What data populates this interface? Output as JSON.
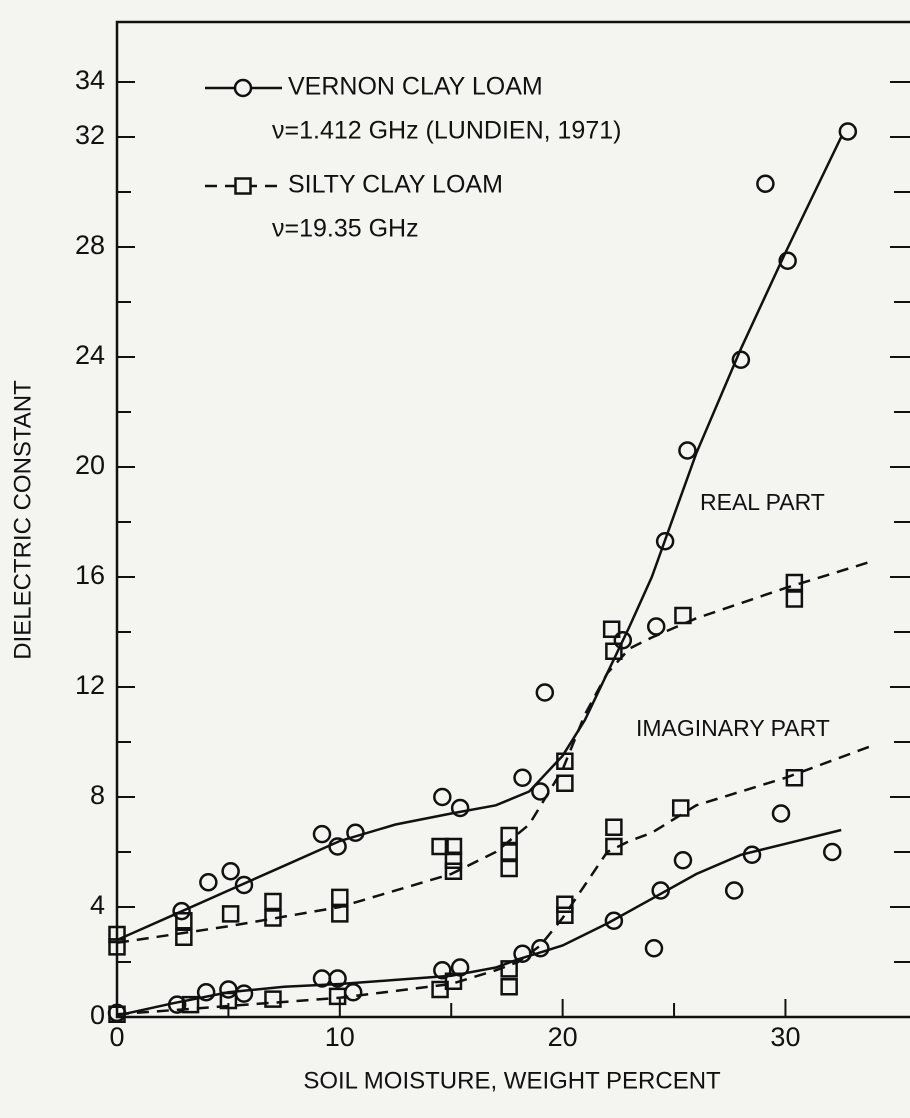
{
  "chart_data": {
    "type": "scatter",
    "xlabel": "SOIL MOISTURE, WEIGHT PERCENT",
    "ylabel": "DIELECTRIC CONSTANT",
    "xlim": [
      0,
      35.5
    ],
    "ylim": [
      0,
      36
    ],
    "xticks": [
      0,
      10,
      20,
      30
    ],
    "xminorticks": [
      5,
      15,
      25
    ],
    "yticks": [
      0,
      4,
      8,
      12,
      16,
      20,
      24,
      28,
      32,
      34
    ],
    "yminorticks": [
      2,
      6,
      10,
      14,
      18,
      22,
      26,
      30
    ],
    "annotations": [
      "REAL PART",
      "IMAGINARY PART"
    ],
    "series": [
      {
        "name": "VERNON CLAY LOAM",
        "note": "ν=1.412 GHz (LUNDIEN, 1971)",
        "marker": "circle",
        "dashed": false,
        "color": "#111111",
        "parts": [
          {
            "x": [
              2.9,
              4.1,
              5.1,
              5.7,
              9.2,
              9.9,
              10.7,
              14.6,
              15.4,
              18.2,
              19.0,
              19.2,
              22.7,
              24.2,
              24.6,
              25.6,
              28.0,
              29.1,
              30.1,
              32.8
            ],
            "values": [
              3.85,
              4.9,
              5.3,
              4.8,
              6.65,
              6.2,
              6.7,
              8.0,
              7.6,
              8.7,
              8.2,
              11.8,
              13.7,
              14.2,
              17.3,
              20.6,
              23.9,
              30.3,
              27.5,
              32.2
            ],
            "curve_x": [
              0,
              2.5,
              5,
              7.5,
              10,
              12.5,
              15,
              17,
              18.5,
              20,
              21,
              22,
              23,
              24,
              26,
              28,
              30,
              32.5
            ],
            "curve_y": [
              2.8,
              3.7,
              4.6,
              5.5,
              6.4,
              7.0,
              7.4,
              7.7,
              8.2,
              9.5,
              10.8,
              12.5,
              14.2,
              16.0,
              20.5,
              24.3,
              27.8,
              32.0
            ]
          },
          {
            "x": [
              0,
              2.7,
              4.0,
              5.0,
              5.7,
              9.2,
              9.9,
              10.6,
              14.6,
              15.4,
              18.2,
              19.0,
              22.3,
              24.1,
              24.4,
              25.4,
              27.7,
              28.5,
              29.8,
              32.1
            ],
            "values": [
              0.15,
              0.45,
              0.9,
              1.0,
              0.85,
              1.4,
              1.4,
              0.9,
              1.7,
              1.8,
              2.3,
              2.5,
              3.5,
              2.5,
              4.6,
              5.7,
              4.6,
              5.9,
              7.4,
              6.0
            ],
            "curve_x": [
              0,
              2.5,
              5,
              7.5,
              10,
              12.5,
              15,
              17,
              18,
              19,
              20,
              22,
              24,
              26,
              28,
              30,
              32.5
            ],
            "curve_y": [
              0.05,
              0.5,
              0.9,
              1.1,
              1.2,
              1.35,
              1.5,
              1.8,
              2.1,
              2.35,
              2.6,
              3.4,
              4.3,
              5.2,
              5.9,
              6.3,
              6.8
            ]
          }
        ]
      },
      {
        "name": "SILTY CLAY LOAM",
        "note": "ν=19.35 GHz",
        "marker": "square",
        "dashed": true,
        "color": "#111111",
        "parts": [
          {
            "x": [
              0,
              0,
              3.0,
              3.0,
              5.1,
              7.0,
              7.0,
              10.0,
              10.0,
              14.5,
              15.1,
              15.1,
              15.1,
              17.6,
              17.6,
              17.6,
              20.1,
              20.1,
              22.2,
              22.3,
              25.4,
              30.4,
              30.4
            ],
            "values": [
              3.0,
              2.55,
              3.5,
              2.9,
              3.75,
              4.2,
              3.6,
              4.35,
              3.75,
              6.2,
              6.2,
              5.7,
              5.3,
              6.6,
              6.0,
              5.4,
              9.3,
              8.5,
              14.1,
              13.3,
              14.6,
              15.8,
              15.2
            ],
            "curve_x": [
              0,
              5,
              10,
              15,
              17,
              18.5,
              20,
              21,
              22,
              23,
              24,
              26,
              30,
              34
            ],
            "curve_y": [
              2.7,
              3.3,
              4.0,
              5.2,
              6.0,
              7.0,
              9.0,
              11.0,
              12.5,
              13.4,
              13.8,
              14.5,
              15.6,
              16.6
            ]
          },
          {
            "x": [
              0,
              3.3,
              5.0,
              7.0,
              9.9,
              14.5,
              15.1,
              17.6,
              17.6,
              20.1,
              20.1,
              22.3,
              22.3,
              25.3,
              30.4
            ],
            "values": [
              0.1,
              0.45,
              0.6,
              0.65,
              0.75,
              1.0,
              1.3,
              1.1,
              1.75,
              4.1,
              3.7,
              6.9,
              6.2,
              7.6,
              8.7
            ],
            "curve_x": [
              0,
              5,
              10,
              15,
              17,
              18,
              19,
              20,
              21,
              22,
              23,
              24,
              26,
              30,
              34
            ],
            "curve_y": [
              0.1,
              0.4,
              0.7,
              1.2,
              1.7,
              2.0,
              2.6,
              3.6,
              4.8,
              6.0,
              6.4,
              6.7,
              7.7,
              8.7,
              9.9
            ]
          }
        ]
      }
    ]
  }
}
